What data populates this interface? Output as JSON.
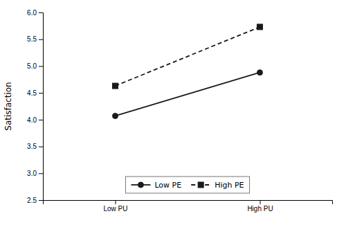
{
  "chart_data": {
    "type": "line",
    "categories": [
      "Low PU",
      "High PU"
    ],
    "series": [
      {
        "name": "Low PE",
        "color": "#1a1a1a",
        "values": [
          4.07,
          4.88
        ],
        "marker": "circle",
        "line_style": "solid"
      },
      {
        "name": "High PE",
        "color": "#1a1a1a",
        "values": [
          4.63,
          5.73
        ],
        "marker": "square",
        "line_style": "dashed"
      }
    ],
    "ylabel": "Satisfaction",
    "ylim": [
      2.5,
      6.0
    ],
    "yticks": [
      2.5,
      {
        "value": 3.0,
        "label": "3.0"
      },
      3.5,
      {
        "value": 4.0,
        "label": "4.0"
      },
      4.5,
      {
        "value": 5.0,
        "label": "5.0"
      },
      5.5,
      {
        "value": 6.0,
        "label": "6.0"
      }
    ],
    "grid": false,
    "legend": "lower center"
  }
}
